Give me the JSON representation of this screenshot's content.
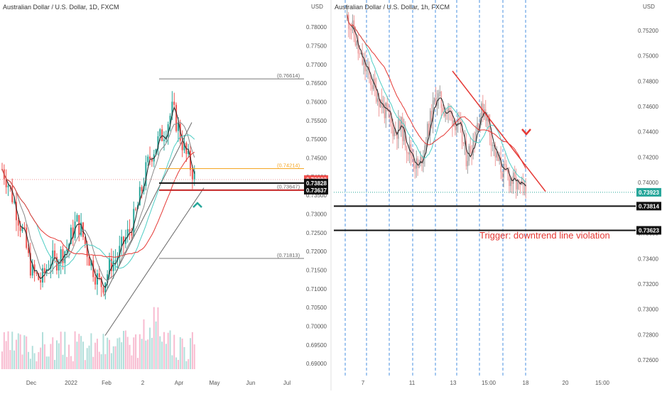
{
  "colors": {
    "up": "#26a69a",
    "down": "#ef5350",
    "red_line": "#e53935",
    "orange": "#f5a623",
    "teal_ma": "#4ecdc4",
    "black_ma": "#222222",
    "gray_line": "#777777",
    "dashed_blue": "#4a90e2",
    "price_tag_teal": "#26a69a",
    "trigger_red": "#e53935"
  },
  "left_panel": {
    "title": "Australian Dollar / U.S. Dollar, 1D, FXCM",
    "currency": "USD",
    "y_ticks": [
      "0.78000",
      "0.77500",
      "0.77000",
      "0.76500",
      "0.76000",
      "0.75500",
      "0.75000",
      "0.74500",
      "0.74000",
      "0.73500",
      "0.73000",
      "0.72500",
      "0.72000",
      "0.71500",
      "0.71000",
      "0.70500",
      "0.70000",
      "0.69500",
      "0.69000"
    ],
    "x_ticks": [
      "Dec",
      "2022",
      "Feb",
      "2",
      "Apr",
      "May",
      "Jun",
      "Jul"
    ],
    "level_labels": [
      {
        "text": "(0.76614)",
        "value": 0.76614
      },
      {
        "text": "(0.74214)",
        "value": 0.74214
      },
      {
        "text": "(0.73647)",
        "value": 0.73647
      },
      {
        "text": "(0.71813)",
        "value": 0.71813
      }
    ],
    "price_tags": [
      {
        "text": "0.73923",
        "style": "red",
        "value": 0.73923
      },
      {
        "text": "0.73828",
        "style": "black",
        "value": 0.73828
      },
      {
        "text": "0.73637",
        "style": "black",
        "value": 0.73637
      }
    ]
  },
  "right_panel": {
    "title": "Australian Dollar / U.S. Dollar, 1h, FXCM",
    "currency": "USD",
    "y_ticks": [
      "0.75200",
      "0.75000",
      "0.74800",
      "0.74600",
      "0.74400",
      "0.74200",
      "0.74000",
      "0.73800",
      "0.73600",
      "0.73400",
      "0.73200",
      "0.73000",
      "0.72800",
      "0.72600"
    ],
    "x_ticks": [
      "7",
      "11",
      "13",
      "15:00",
      "18",
      "20",
      "15:00"
    ],
    "price_tags": [
      {
        "text": "0.73923",
        "style": "teal",
        "value": 0.73923
      },
      {
        "text": "0.73814",
        "style": "black",
        "value": 0.73814
      },
      {
        "text": "0.73623",
        "style": "black",
        "value": 0.73623
      }
    ],
    "annotation": "Trigger: downtrend line violation"
  },
  "chart_data": [
    {
      "type": "candlestick",
      "title": "Australian Dollar / U.S. Dollar, 1D, FXCM",
      "ylim": [
        0.6885,
        0.7825
      ],
      "y_unit": "USD",
      "x_ticks": [
        "Dec",
        "2022",
        "Feb",
        "2",
        "Apr",
        "May",
        "Jun",
        "Jul"
      ],
      "horizontal_levels": [
        0.76614,
        0.74214,
        0.73647,
        0.71813,
        0.73828,
        0.73637
      ],
      "last_price": 0.73923,
      "series": [
        {
          "name": "close",
          "values": [
            0.742,
            0.7395,
            0.736,
            0.732,
            0.728,
            0.724,
            0.718,
            0.714,
            0.713,
            0.712,
            0.715,
            0.718,
            0.717,
            0.7185,
            0.72,
            0.721,
            0.725,
            0.728,
            0.726,
            0.722,
            0.718,
            0.715,
            0.712,
            0.711,
            0.714,
            0.717,
            0.718,
            0.72,
            0.723,
            0.725,
            0.728,
            0.732,
            0.737,
            0.742,
            0.746,
            0.748,
            0.75,
            0.752,
            0.755,
            0.758,
            0.754,
            0.75,
            0.746,
            0.743,
            0.74
          ]
        }
      ]
    },
    {
      "type": "candlestick",
      "title": "Australian Dollar / U.S. Dollar, 1h, FXCM",
      "ylim": [
        0.725,
        0.753
      ],
      "y_unit": "USD",
      "x_ticks": [
        "7",
        "11",
        "13",
        "15:00",
        "18",
        "20",
        "15:00"
      ],
      "horizontal_levels": [
        0.73814,
        0.73623
      ],
      "last_price": 0.73923,
      "series": [
        {
          "name": "close",
          "values": [
            0.753,
            0.752,
            0.75,
            0.749,
            0.748,
            0.747,
            0.746,
            0.745,
            0.744,
            0.7445,
            0.743,
            0.742,
            0.741,
            0.743,
            0.745,
            0.747,
            0.746,
            0.7455,
            0.745,
            0.744,
            0.742,
            0.743,
            0.745,
            0.746,
            0.744,
            0.742,
            0.741,
            0.7405,
            0.74,
            0.7395,
            0.7392
          ]
        }
      ]
    }
  ]
}
